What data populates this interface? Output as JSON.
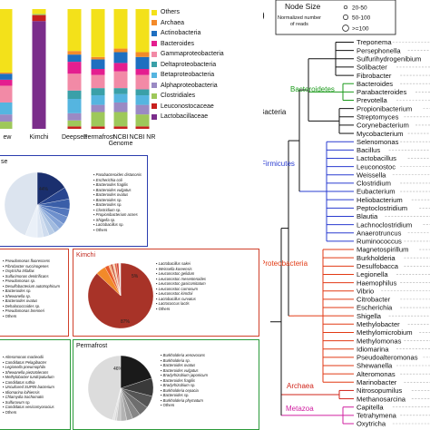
{
  "figure": {
    "panel_b_label": "b)"
  },
  "chart_data": {
    "type": "bar",
    "stacked": true,
    "categories": [
      "...ew",
      "Kimchi",
      "Deepsea",
      "Permafrost",
      "NCBI Genome",
      "NCBI NR"
    ],
    "category_label_lines": [
      [
        "ew"
      ],
      [
        "Kimchi"
      ],
      [
        "Deepsea"
      ],
      [
        "Permafrost"
      ],
      [
        "NCBI",
        "Genome"
      ],
      [
        "NCBI NR"
      ]
    ],
    "ylim": [
      0,
      1
    ],
    "legend_position": "right",
    "series": [
      {
        "name": "Lactobacillaceae",
        "color": "#7b2d8b",
        "values": [
          0.0,
          0.9,
          0.0,
          0.0,
          0.0,
          0.0
        ]
      },
      {
        "name": "Leuconostocaceae",
        "color": "#c8201e",
        "values": [
          0.0,
          0.05,
          0.02,
          0.02,
          0.02,
          0.02
        ]
      },
      {
        "name": "Clostridiales",
        "color": "#9ec85a",
        "values": [
          0.06,
          0.01,
          0.05,
          0.12,
          0.12,
          0.1
        ]
      },
      {
        "name": "Alphaproteobacteria",
        "color": "#9a8ac4",
        "values": [
          0.06,
          0.0,
          0.06,
          0.06,
          0.08,
          0.08
        ]
      },
      {
        "name": "Betaproteobacteria",
        "color": "#55b5e0",
        "values": [
          0.1,
          0.0,
          0.12,
          0.08,
          0.07,
          0.08
        ]
      },
      {
        "name": "Deltaproteobacteria",
        "color": "#3aa0a8",
        "values": [
          0.0,
          0.0,
          0.07,
          0.06,
          0.05,
          0.05
        ]
      },
      {
        "name": "Gammaproteobacteria",
        "color": "#f28aa6",
        "values": [
          0.14,
          0.0,
          0.14,
          0.11,
          0.14,
          0.12
        ]
      },
      {
        "name": "Bacteroides",
        "color": "#e41e8f",
        "values": [
          0.05,
          0.0,
          0.1,
          0.05,
          0.07,
          0.05
        ]
      },
      {
        "name": "Actinobacteria",
        "color": "#1e6fc0",
        "values": [
          0.05,
          0.0,
          0.06,
          0.08,
          0.09,
          0.1
        ]
      },
      {
        "name": "Archaea",
        "color": "#f38a2a",
        "values": [
          0.01,
          0.0,
          0.03,
          0.02,
          0.03,
          0.04
        ]
      },
      {
        "name": "Others",
        "color": "#f3e11a",
        "values": [
          0.53,
          0.04,
          0.35,
          0.4,
          0.33,
          0.36
        ]
      }
    ]
  },
  "pies": [
    {
      "name": "Human stool",
      "title": "se",
      "border": "#2a3cae",
      "legend_title": "",
      "percent_labels": [
        "44%"
      ],
      "legend": [
        "Parabacteroides distasonis",
        "Escherichia coli",
        "Bacteroides fragilis",
        "Bacteroides vulgatus",
        "Bacteroides ovatus",
        "Bacteroides sp.",
        "Bacteroides sp.",
        "Clostridium sp.",
        "Propionibacterium acnes",
        "Shigella sp.",
        "Lactobacillus sp.",
        "Others"
      ],
      "colors": [
        "#1a2f6e",
        "#28458f",
        "#3a5ea8",
        "#5377bd",
        "#6d8fcc",
        "#86a5d8",
        "#a0badf",
        "#b8cce6",
        "#cfdcee",
        "#dee7f3",
        "#eaf0f8",
        "#dce4ef"
      ],
      "values": [
        0.16,
        0.06,
        0.05,
        0.04,
        0.04,
        0.03,
        0.03,
        0.03,
        0.03,
        0.03,
        0.06,
        0.44
      ]
    },
    {
      "name": "Deepsea list",
      "title": "",
      "border": "#d0402a",
      "legend": [
        "Pseudomonas fluorescens",
        "Fibrobacter succinogenes",
        "Oxytricha trifallax",
        "Sulfurimonas denitrificans",
        "Pseudomonas sp.",
        "Desulfobacterium autotrophicum",
        "Bacteroides sp.",
        "Shewanella sp.",
        "Bacteroides ovatus",
        "Dehalococcoides sp.",
        "Pseudomonas brenneri",
        "Others"
      ]
    },
    {
      "name": "Kimchi",
      "title": "Kimchi",
      "border": "#d0402a",
      "percent_labels": [
        "5%",
        "87%"
      ],
      "legend": [
        "Lactobacillus sakei",
        "Weissella koreensis",
        "Leuconostoc gelidum",
        "Leuconostoc mesenteroides",
        "Leuconostoc gasicomitatum",
        "Leuconostoc carnosum",
        "Leuconostoc kimchii",
        "Lactobacillus curvatus",
        "Lactococcus lactis",
        "Others"
      ],
      "colors": [
        "#a83328",
        "#f28a2a",
        "#e85a2a",
        "#f7b07a",
        "#c44a30",
        "#f8d0b0",
        "#e06040",
        "#d04030",
        "#fbe0d0",
        "#f0f0f0"
      ],
      "values": [
        0.87,
        0.05,
        0.02,
        0.01,
        0.01,
        0.01,
        0.01,
        0.01,
        0.005,
        0.005
      ]
    },
    {
      "name": "Deepsea species",
      "title": "",
      "border": "#2a9a3a",
      "legend": [
        "Alteromonas macleodii",
        "Candidatus Pelagibacter",
        "Legionella pneumophila",
        "Shewanella piezotolerans",
        "Methylobacter tundripaludum",
        "Candidatus ruthia",
        "Uncultured SUP05 bacterium",
        "Idiomarina loihiensis",
        "Chlamydia trachomatis",
        "Sulfurovum sp.",
        "Candidatus vesicomyosocius",
        "Others"
      ]
    },
    {
      "name": "Permafrost",
      "title": "Permafrost",
      "border": "#2a9a3a",
      "percent_labels": [
        "46%"
      ],
      "legend": [
        "Burkholderia xenovorans",
        "Burkholderia sp.",
        "Bacteroides ovatus",
        "Bacteroides vulgatus",
        "Bradyrhizobium japonicum",
        "Bacteroides fragilis",
        "Bradyrhizobium sp.",
        "Burkholderia cepacia",
        "Bacteroides sp.",
        "Burkholderia phymatum",
        "Others"
      ],
      "colors": [
        "#1a1a1a",
        "#3a3a3a",
        "#555555",
        "#6e6e6e",
        "#878787",
        "#9e9e9e",
        "#b3b3b3",
        "#c6c6c6",
        "#d6d6d6",
        "#e2e2e2",
        "#dcdcdc"
      ],
      "values": [
        0.2,
        0.09,
        0.06,
        0.05,
        0.04,
        0.03,
        0.03,
        0.02,
        0.01,
        0.01,
        0.46
      ]
    }
  ],
  "tree": {
    "node_size_legend": {
      "title": "Node Size",
      "subtitle_lines": [
        "Normalized number",
        "of reads"
      ],
      "items": [
        "20-50",
        "50-100",
        ">=100"
      ]
    },
    "groups": [
      {
        "name": "Bacteroidetes",
        "color": "#1a9a1a"
      },
      {
        "name": "Bacteria",
        "color": "#111111"
      },
      {
        "name": "Firmicutes",
        "color": "#2a3cd0"
      },
      {
        "name": "Proteobacteria",
        "color": "#e23a14"
      },
      {
        "name": "Archaea",
        "color": "#d0241a"
      },
      {
        "name": "Metazoa",
        "color": "#d020a0"
      }
    ],
    "leaves": [
      {
        "name": "Treponema",
        "group": "Bacteria"
      },
      {
        "name": "Persephonella",
        "group": "Bacteria"
      },
      {
        "name": "Sulfurihydrogenibium",
        "group": "Bacteria"
      },
      {
        "name": "Solibacter",
        "group": "Bacteria"
      },
      {
        "name": "Fibrobacter",
        "group": "Bacteria"
      },
      {
        "name": "Bacteroides",
        "group": "Bacteroidetes"
      },
      {
        "name": "Parabacteroides",
        "group": "Bacteroidetes"
      },
      {
        "name": "Prevotella",
        "group": "Bacteroidetes"
      },
      {
        "name": "Propionibacterium",
        "group": "Bacteria"
      },
      {
        "name": "Streptomyces",
        "group": "Bacteria"
      },
      {
        "name": "Corynebacterium",
        "group": "Bacteria"
      },
      {
        "name": "Mycobacterium",
        "group": "Bacteria"
      },
      {
        "name": "Selenomonas",
        "group": "Firmicutes"
      },
      {
        "name": "Bacillus",
        "group": "Firmicutes"
      },
      {
        "name": "Lactobacillus",
        "group": "Firmicutes"
      },
      {
        "name": "Leuconostoc",
        "group": "Firmicutes"
      },
      {
        "name": "Weissella",
        "group": "Firmicutes"
      },
      {
        "name": "Clostridium",
        "group": "Firmicutes"
      },
      {
        "name": "Eubacterium",
        "group": "Firmicutes"
      },
      {
        "name": "Heliobacterium",
        "group": "Firmicutes"
      },
      {
        "name": "Peptoclostridium",
        "group": "Firmicutes"
      },
      {
        "name": "Blautia",
        "group": "Firmicutes"
      },
      {
        "name": "Lachnoclostridium",
        "group": "Firmicutes"
      },
      {
        "name": "Anaerotruncus",
        "group": "Firmicutes"
      },
      {
        "name": "Ruminococcus",
        "group": "Firmicutes"
      },
      {
        "name": "Magnetospirillum",
        "group": "Proteobacteria"
      },
      {
        "name": "Burkholderia",
        "group": "Proteobacteria"
      },
      {
        "name": "Desulfobacca",
        "group": "Proteobacteria"
      },
      {
        "name": "Legionella",
        "group": "Proteobacteria"
      },
      {
        "name": "Haemophilus",
        "group": "Proteobacteria"
      },
      {
        "name": "Vibrio",
        "group": "Proteobacteria"
      },
      {
        "name": "Citrobacter",
        "group": "Proteobacteria"
      },
      {
        "name": "Escherichia",
        "group": "Proteobacteria"
      },
      {
        "name": "Shigella",
        "group": "Proteobacteria"
      },
      {
        "name": "Methylobacter",
        "group": "Proteobacteria"
      },
      {
        "name": "Methylomicrobium",
        "group": "Proteobacteria"
      },
      {
        "name": "Methylomonas",
        "group": "Proteobacteria"
      },
      {
        "name": "Idiomarina",
        "group": "Proteobacteria"
      },
      {
        "name": "Pseudoalteromonas",
        "group": "Proteobacteria"
      },
      {
        "name": "Shewanella",
        "group": "Proteobacteria"
      },
      {
        "name": "Alteromonas",
        "group": "Proteobacteria"
      },
      {
        "name": "Marinobacter",
        "group": "Proteobacteria"
      },
      {
        "name": "Nitrosopumilus",
        "group": "Archaea"
      },
      {
        "name": "Methanosarcina",
        "group": "Archaea"
      },
      {
        "name": "Capitella",
        "group": "Metazoa"
      },
      {
        "name": "Tetrahymena",
        "group": "Metazoa"
      },
      {
        "name": "Oxytricha",
        "group": "Metazoa"
      }
    ]
  }
}
